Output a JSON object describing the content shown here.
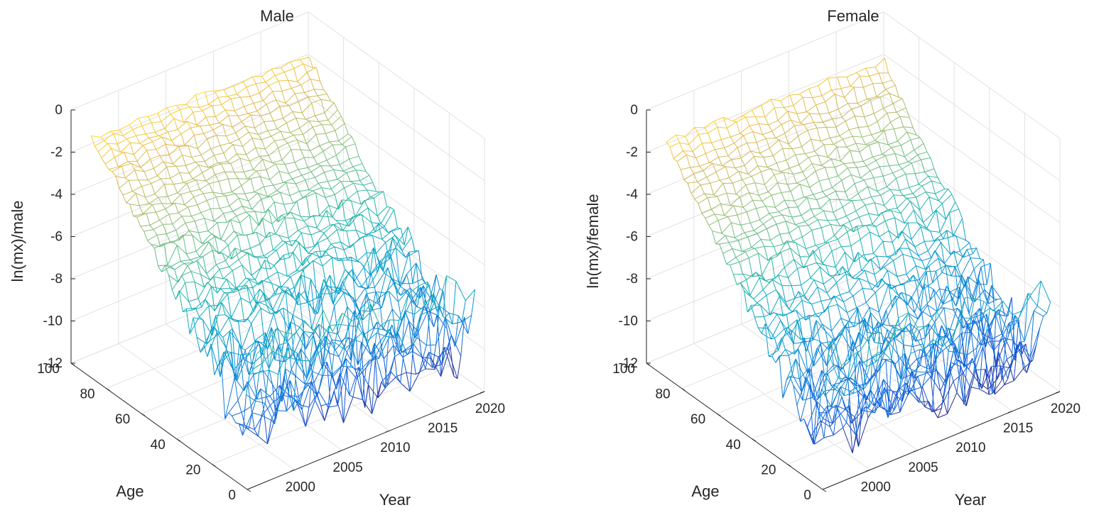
{
  "chart_data": [
    {
      "type": "surface",
      "title": "Male",
      "xlabel": "Year",
      "ylabel": "Age",
      "zlabel": "ln(mx)/male",
      "x_ticks": [
        "2000",
        "2005",
        "2010",
        "2015",
        "2020"
      ],
      "y_ticks": [
        "0",
        "20",
        "40",
        "60",
        "80",
        "100"
      ],
      "z_ticks": [
        "0",
        "-2",
        "-4",
        "-6",
        "-8",
        "-10",
        "-12"
      ],
      "x_range": [
        1995,
        2020
      ],
      "y_range": [
        0,
        100
      ],
      "z_range": [
        -12,
        0
      ],
      "colormap": "parula",
      "grid": true,
      "surface_samples": {
        "years": [
          1996,
          2000,
          2005,
          2010,
          2015,
          2019
        ],
        "ages": [
          0,
          10,
          20,
          40,
          60,
          80,
          95
        ],
        "ln_mx": [
          [
            -5.2,
            -9.9,
            -7.8,
            -6.2,
            -4.3,
            -2.3,
            -1.0
          ],
          [
            -5.4,
            -10.2,
            -8.0,
            -6.3,
            -4.4,
            -2.4,
            -1.1
          ],
          [
            -5.8,
            -10.5,
            -8.2,
            -6.4,
            -4.6,
            -2.6,
            -1.2
          ],
          [
            -6.1,
            -10.6,
            -8.3,
            -6.6,
            -4.8,
            -2.8,
            -1.3
          ],
          [
            -6.5,
            -10.8,
            -8.4,
            -6.8,
            -5.0,
            -3.0,
            -1.4
          ],
          [
            -6.8,
            -10.9,
            -8.5,
            -6.9,
            -5.1,
            -3.1,
            -1.5
          ]
        ]
      }
    },
    {
      "type": "surface",
      "title": "Female",
      "xlabel": "Year",
      "ylabel": "Age",
      "zlabel": "ln(mx)/female",
      "x_ticks": [
        "2000",
        "2005",
        "2010",
        "2015",
        "2020"
      ],
      "y_ticks": [
        "0",
        "20",
        "40",
        "60",
        "80",
        "100"
      ],
      "z_ticks": [
        "0",
        "-2",
        "-4",
        "-6",
        "-8",
        "-10",
        "-12"
      ],
      "x_range": [
        1995,
        2020
      ],
      "y_range": [
        0,
        100
      ],
      "z_range": [
        -12,
        0
      ],
      "colormap": "parula",
      "grid": true,
      "surface_samples": {
        "years": [
          1996,
          2000,
          2005,
          2010,
          2015,
          2019
        ],
        "ages": [
          0,
          10,
          20,
          40,
          60,
          80,
          95
        ],
        "ln_mx": [
          [
            -5.6,
            -10.3,
            -9.0,
            -7.3,
            -5.0,
            -2.8,
            -1.2
          ],
          [
            -5.8,
            -10.6,
            -9.2,
            -7.4,
            -5.1,
            -2.9,
            -1.3
          ],
          [
            -6.1,
            -10.8,
            -9.3,
            -7.5,
            -5.3,
            -3.1,
            -1.4
          ],
          [
            -6.4,
            -11.0,
            -9.4,
            -7.7,
            -5.5,
            -3.3,
            -1.5
          ],
          [
            -6.7,
            -11.1,
            -9.5,
            -7.9,
            -5.7,
            -3.5,
            -1.6
          ],
          [
            -7.0,
            -11.2,
            -9.6,
            -8.0,
            -5.8,
            -3.6,
            -1.7
          ]
        ]
      }
    }
  ]
}
